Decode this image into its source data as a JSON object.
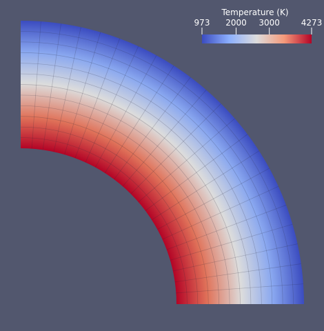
{
  "colorbar": {
    "title": "Temperature (K)",
    "range": [
      973,
      4273
    ],
    "ticks": [
      973,
      2000,
      3000,
      4273
    ]
  }
}
